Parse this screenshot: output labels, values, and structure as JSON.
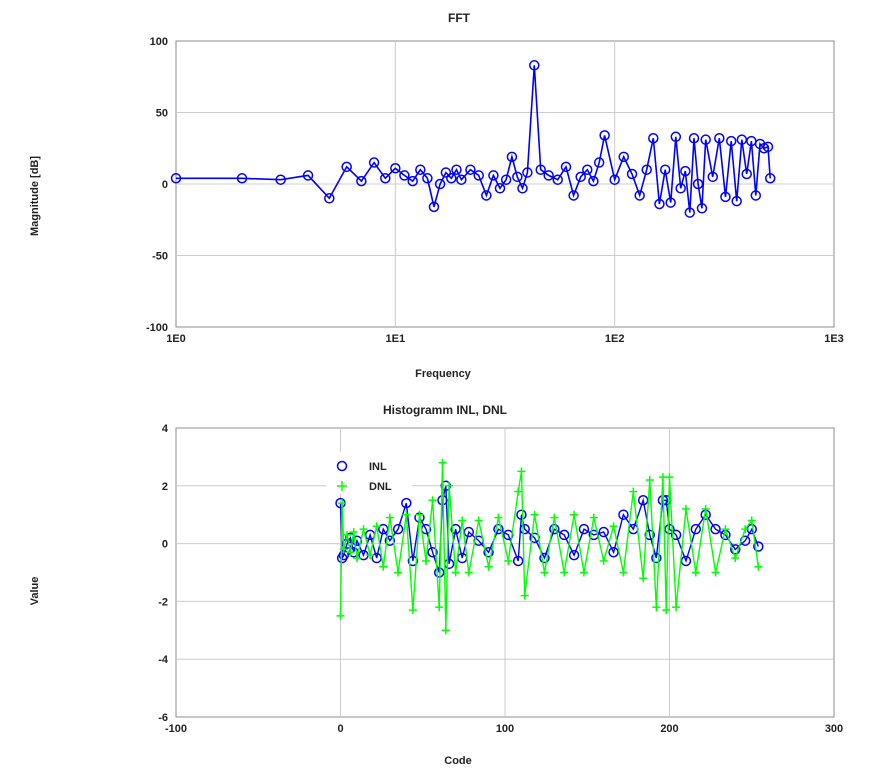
{
  "chart_data": [
    {
      "type": "line",
      "title": "FFT",
      "xlabel": "Frequency",
      "ylabel": "Magnitude [dB]",
      "xscale": "log",
      "xlim": [
        1,
        1000
      ],
      "ylim": [
        -100,
        100
      ],
      "grid": true,
      "xticks": [
        "1E0",
        "1E1",
        "1E2",
        "1E3"
      ],
      "yticks": [
        "100",
        "50",
        "0",
        "-50",
        "-100"
      ],
      "series_color": "#0000ff",
      "marker": "circle",
      "x": [
        1,
        2,
        3,
        4,
        5,
        6,
        7,
        8,
        9,
        10,
        11,
        12,
        13,
        14,
        15,
        16,
        17,
        18,
        19,
        20,
        22,
        24,
        26,
        28,
        30,
        32,
        34,
        36,
        38,
        40,
        43,
        46,
        50,
        55,
        60,
        65,
        70,
        75,
        80,
        85,
        90,
        100,
        110,
        120,
        130,
        140,
        150,
        160,
        170,
        180,
        190,
        200,
        210,
        220,
        230,
        240,
        250,
        260,
        280,
        300,
        320,
        340,
        360,
        380,
        400,
        420,
        440,
        460,
        480,
        500,
        512
      ],
      "y": [
        4,
        4,
        3,
        6,
        -10,
        12,
        2,
        15,
        4,
        11,
        6,
        2,
        10,
        4,
        -16,
        0,
        8,
        4,
        10,
        3,
        10,
        6,
        -8,
        6,
        -3,
        3,
        19,
        5,
        -3,
        8,
        83,
        10,
        6,
        3,
        12,
        -8,
        5,
        10,
        2,
        15,
        34,
        3,
        19,
        7,
        -8,
        10,
        32,
        -14,
        10,
        -13,
        33,
        -3,
        9,
        -20,
        32,
        0,
        -17,
        31,
        5,
        32,
        -9,
        30,
        -12,
        31,
        7,
        30,
        -8,
        28,
        25,
        26,
        4
      ]
    },
    {
      "type": "scatter",
      "title": "Histogramm INL, DNL",
      "xlabel": "Code",
      "ylabel": "Value",
      "xlim": [
        -100,
        300
      ],
      "ylim": [
        -6,
        4
      ],
      "grid": true,
      "xticks": [
        "-100",
        "0",
        "100",
        "200",
        "300"
      ],
      "yticks": [
        "4",
        "2",
        "0",
        "-2",
        "-4",
        "-6"
      ],
      "legend_position": "top-left",
      "series": [
        {
          "name": "INL",
          "color": "#0000ff",
          "marker": "circle",
          "x": [
            0,
            1,
            2,
            4,
            6,
            8,
            10,
            14,
            18,
            22,
            26,
            30,
            35,
            40,
            44,
            48,
            52,
            56,
            60,
            62,
            64,
            66,
            70,
            74,
            78,
            84,
            90,
            96,
            102,
            108,
            110,
            112,
            118,
            124,
            130,
            136,
            142,
            148,
            154,
            160,
            166,
            172,
            178,
            184,
            188,
            192,
            196,
            198,
            200,
            204,
            210,
            216,
            222,
            228,
            234,
            240,
            246,
            250,
            254
          ],
          "y": [
            1.4,
            -0.5,
            -0.4,
            0,
            0.2,
            -0.3,
            0.1,
            -0.4,
            0.3,
            -0.5,
            0.5,
            0.1,
            0.5,
            1.4,
            -0.6,
            0.9,
            0.5,
            -0.3,
            -1.0,
            1.5,
            2.0,
            -0.7,
            0.5,
            -0.5,
            0.4,
            0.1,
            -0.3,
            0.5,
            0.3,
            -0.6,
            1.0,
            0.5,
            0.2,
            -0.5,
            0.5,
            0.3,
            -0.4,
            0.5,
            0.3,
            0.4,
            -0.3,
            1.0,
            0.5,
            1.5,
            0.3,
            -0.5,
            1.5,
            1.5,
            0.5,
            0.3,
            -0.6,
            0.5,
            1.0,
            0.5,
            0.3,
            -0.2,
            0.1,
            0.5,
            -0.1
          ]
        },
        {
          "name": "DNL",
          "color": "#00ff00",
          "marker": "plus",
          "x": [
            0,
            1,
            2,
            4,
            6,
            8,
            10,
            14,
            18,
            22,
            26,
            30,
            35,
            40,
            44,
            48,
            52,
            56,
            60,
            62,
            64,
            66,
            70,
            74,
            78,
            84,
            90,
            96,
            102,
            108,
            110,
            112,
            118,
            124,
            130,
            136,
            142,
            148,
            154,
            160,
            166,
            172,
            178,
            184,
            188,
            192,
            196,
            198,
            200,
            204,
            210,
            216,
            222,
            228,
            234,
            240,
            246,
            250,
            254
          ],
          "y": [
            -2.5,
            1.4,
            -0.2,
            0.3,
            -0.3,
            0.4,
            -0.5,
            0.5,
            -0.4,
            0.6,
            -0.8,
            0.9,
            -1.0,
            1.0,
            -2.3,
            1.0,
            -0.6,
            1.5,
            -2.2,
            2.8,
            -3.0,
            2.0,
            -1.0,
            0.8,
            -1.0,
            0.8,
            -0.8,
            0.9,
            -0.6,
            1.8,
            2.5,
            -1.8,
            1.0,
            -1.0,
            0.9,
            -1.0,
            1.0,
            -1.0,
            0.9,
            -0.6,
            0.6,
            -1.0,
            1.8,
            -1.2,
            2.2,
            -2.2,
            2.3,
            -2.3,
            2.3,
            -2.2,
            1.2,
            -1.0,
            1.2,
            -1.0,
            0.5,
            -0.5,
            0.5,
            0.8,
            -0.8
          ]
        }
      ]
    }
  ]
}
